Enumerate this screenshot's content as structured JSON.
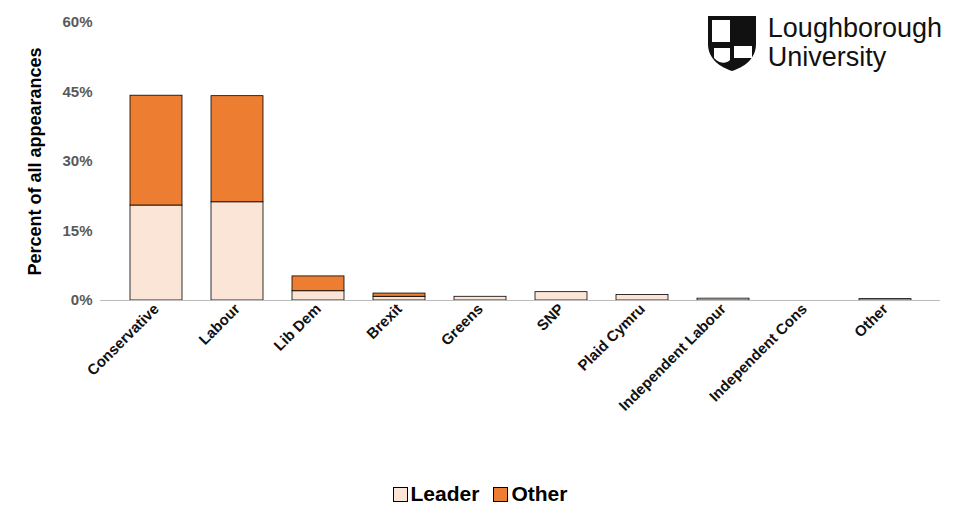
{
  "chart_data": {
    "type": "bar",
    "stacked": true,
    "y_label": "Percent of all appearances",
    "annotations": [
      "Loughborough",
      "University"
    ],
    "categories": [
      "Conservative",
      "Labour",
      "Lib Dem",
      "Brexit",
      "Greens",
      "SNP",
      "Plaid Cymru",
      "Independent Labour",
      "Independent Cons",
      "Other"
    ],
    "series": [
      {
        "name": "Leader",
        "color": "#fbe5d6",
        "values": [
          20.5,
          21.2,
          2.0,
          0.8,
          0.8,
          1.8,
          1.2,
          0.4,
          0,
          0.3
        ]
      },
      {
        "name": "Other",
        "color": "#ed7d31",
        "values": [
          23.7,
          22.9,
          3.2,
          0.7,
          0,
          0,
          0,
          0,
          0,
          0
        ]
      }
    ],
    "ylim": [
      0,
      60
    ],
    "yticks": [
      {
        "value": 0,
        "label": "0%"
      },
      {
        "value": 15,
        "label": "15%"
      },
      {
        "value": 30,
        "label": "30%"
      },
      {
        "value": 45,
        "label": "45%"
      },
      {
        "value": 60,
        "label": "60%"
      }
    ],
    "grid": false,
    "legend": "bottom"
  }
}
